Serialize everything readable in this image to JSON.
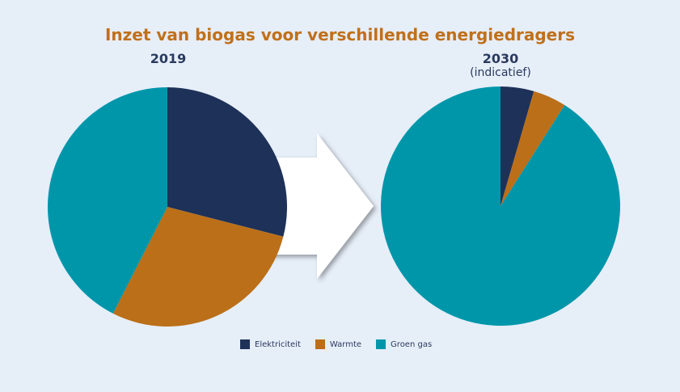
{
  "chart_data": [
    {
      "type": "pie",
      "title": "Inzet van biogas voor verschillende energiedragers",
      "subtitle": "2019",
      "categories": [
        "Elektriciteit",
        "Warmte",
        "Groen gas"
      ],
      "values": [
        29,
        28.5,
        42.5
      ],
      "colors": [
        "#1e3158",
        "#bb6f18",
        "#0096aa"
      ]
    },
    {
      "type": "pie",
      "subtitle": "2030",
      "note": "(indicatief)",
      "categories": [
        "Elektriciteit",
        "Warmte",
        "Groen gas"
      ],
      "values": [
        4.5,
        4.5,
        91
      ],
      "colors": [
        "#1e3158",
        "#bb6f18",
        "#0096aa"
      ]
    }
  ],
  "legend": [
    "Elektriciteit",
    "Warmte",
    "Groen gas"
  ]
}
